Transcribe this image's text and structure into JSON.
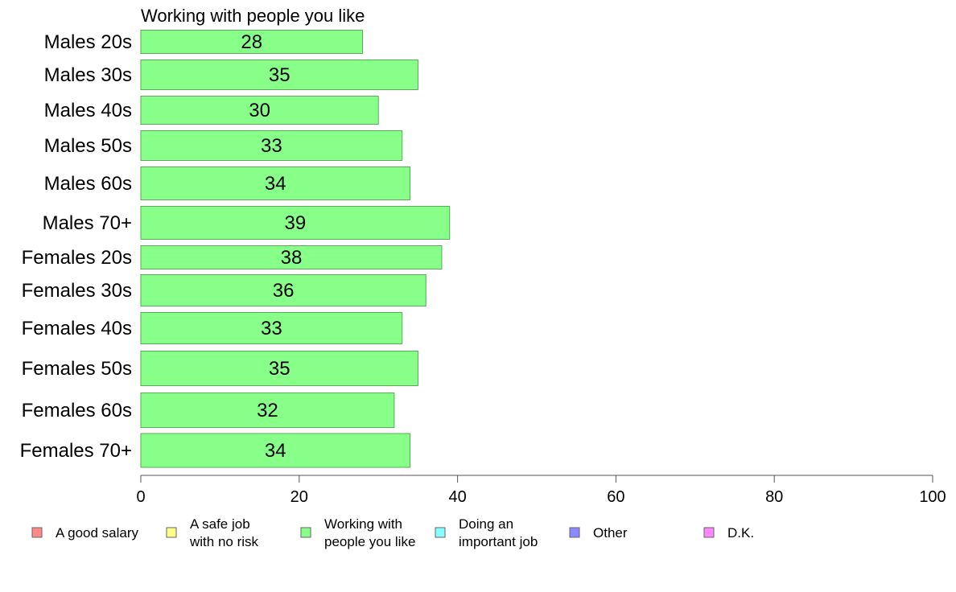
{
  "chart_data": {
    "type": "bar",
    "orientation": "horizontal",
    "title": "Working with people you like",
    "categories": [
      "Males 20s",
      "Males 30s",
      "Males 40s",
      "Males 50s",
      "Males 60s",
      "Males 70+",
      "Females 20s",
      "Females 30s",
      "Females 40s",
      "Females 50s",
      "Females 60s",
      "Females 70+"
    ],
    "values": [
      28,
      35,
      30,
      33,
      34,
      39,
      38,
      36,
      33,
      35,
      32,
      34
    ],
    "xlim": [
      0,
      100
    ],
    "xticks": [
      "0",
      "20",
      "40",
      "60",
      "80",
      "100"
    ],
    "bar_color": "#88ff88",
    "bar_stroke": "#5aa85a",
    "grid": false,
    "legend": {
      "placement": "bottom",
      "items": [
        {
          "lines": [
            "A good salary"
          ],
          "color": "#ff8888"
        },
        {
          "lines": [
            "A safe job",
            "with no risk"
          ],
          "color": "#ffff88"
        },
        {
          "lines": [
            "Working with",
            "people you like"
          ],
          "color": "#88ff88"
        },
        {
          "lines": [
            "Doing an",
            "important job"
          ],
          "color": "#88ffff"
        },
        {
          "lines": [
            "Other"
          ],
          "color": "#8888ff"
        },
        {
          "lines": [
            "D.K."
          ],
          "color": "#ff88ff"
        }
      ]
    }
  }
}
